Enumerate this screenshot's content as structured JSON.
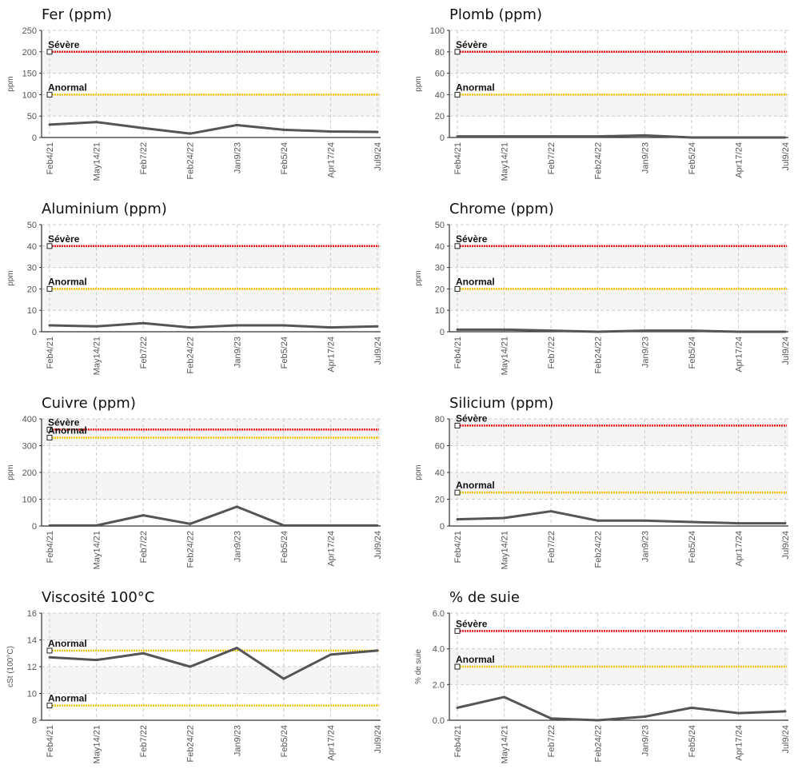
{
  "colors": {
    "severe": "#e8171a",
    "abnormal": "#f5c50e",
    "series": "#555555",
    "band": "#f5f5f5",
    "grid": "#cccccc"
  },
  "chart_data": [
    {
      "type": "line",
      "title": "Fer (ppm)",
      "ylabel": "ppm",
      "categories": [
        "Feb4/21",
        "May14/21",
        "Feb7/22",
        "Feb24/22",
        "Jan9/23",
        "Feb5/24",
        "Apr17/24",
        "Jul9/24"
      ],
      "ylim": [
        0,
        250
      ],
      "yticks": [
        "0",
        "50",
        "100",
        "150",
        "200",
        "250"
      ],
      "series": [
        {
          "values": [
            30,
            36,
            22,
            9,
            29,
            18,
            14,
            13
          ]
        }
      ],
      "thresholds": [
        {
          "label": "Sévère",
          "value": 200,
          "level": "severe"
        },
        {
          "label": "Anormal",
          "value": 100,
          "level": "abnormal"
        }
      ]
    },
    {
      "type": "line",
      "title": "Plomb (ppm)",
      "ylabel": "ppm",
      "categories": [
        "Feb4/21",
        "May14/21",
        "Feb7/22",
        "Feb24/22",
        "Jan9/23",
        "Feb5/24",
        "Apr17/24",
        "Jul9/24"
      ],
      "ylim": [
        0,
        100
      ],
      "yticks": [
        "0",
        "20",
        "40",
        "60",
        "80",
        "100"
      ],
      "series": [
        {
          "values": [
            1,
            1,
            1,
            1,
            2,
            0,
            0,
            0
          ]
        }
      ],
      "thresholds": [
        {
          "label": "Sévère",
          "value": 80,
          "level": "severe"
        },
        {
          "label": "Anormal",
          "value": 40,
          "level": "abnormal"
        }
      ]
    },
    {
      "type": "line",
      "title": "Aluminium (ppm)",
      "ylabel": "ppm",
      "categories": [
        "Feb4/21",
        "May14/21",
        "Feb7/22",
        "Feb24/22",
        "Jan9/23",
        "Feb5/24",
        "Apr17/24",
        "Jul9/24"
      ],
      "ylim": [
        0,
        50
      ],
      "yticks": [
        "0",
        "10",
        "20",
        "30",
        "40",
        "50"
      ],
      "series": [
        {
          "values": [
            3,
            2.5,
            4,
            2,
            3,
            3,
            2,
            2.5
          ]
        }
      ],
      "thresholds": [
        {
          "label": "Sévère",
          "value": 40,
          "level": "severe"
        },
        {
          "label": "Anormal",
          "value": 20,
          "level": "abnormal"
        }
      ]
    },
    {
      "type": "line",
      "title": "Chrome (ppm)",
      "ylabel": "ppm",
      "categories": [
        "Feb4/21",
        "May14/21",
        "Feb7/22",
        "Feb24/22",
        "Jan9/23",
        "Feb5/24",
        "Apr17/24",
        "Jul9/24"
      ],
      "ylim": [
        0,
        50
      ],
      "yticks": [
        "0",
        "10",
        "20",
        "30",
        "40",
        "50"
      ],
      "series": [
        {
          "values": [
            1,
            1,
            0.5,
            0,
            0.5,
            0.5,
            0,
            0
          ]
        }
      ],
      "thresholds": [
        {
          "label": "Sévère",
          "value": 40,
          "level": "severe"
        },
        {
          "label": "Anormal",
          "value": 20,
          "level": "abnormal"
        }
      ]
    },
    {
      "type": "line",
      "title": "Cuivre (ppm)",
      "ylabel": "ppm",
      "categories": [
        "Feb4/21",
        "May14/21",
        "Feb7/22",
        "Feb24/22",
        "Jan9/23",
        "Feb5/24",
        "Apr17/24",
        "Jul9/24"
      ],
      "ylim": [
        0,
        400
      ],
      "yticks": [
        "0",
        "100",
        "200",
        "300",
        "400"
      ],
      "series": [
        {
          "values": [
            2,
            2,
            40,
            8,
            72,
            2,
            2,
            2
          ]
        }
      ],
      "thresholds": [
        {
          "label": "Sévère",
          "value": 360,
          "level": "severe"
        },
        {
          "label": "Anormal",
          "value": 330,
          "level": "abnormal"
        }
      ]
    },
    {
      "type": "line",
      "title": "Silicium (ppm)",
      "ylabel": "ppm",
      "categories": [
        "Feb4/21",
        "May14/21",
        "Feb7/22",
        "Feb24/22",
        "Jan9/23",
        "Feb5/24",
        "Apr17/24",
        "Jul9/24"
      ],
      "ylim": [
        0,
        80
      ],
      "yticks": [
        "0",
        "20",
        "40",
        "60",
        "80"
      ],
      "series": [
        {
          "values": [
            5,
            6,
            11,
            4,
            4,
            3,
            2,
            2
          ]
        }
      ],
      "thresholds": [
        {
          "label": "Sévère",
          "value": 75,
          "level": "severe"
        },
        {
          "label": "Anormal",
          "value": 25,
          "level": "abnormal"
        }
      ]
    },
    {
      "type": "line",
      "title": "Viscosité 100°C",
      "ylabel": "cSt (100°C)",
      "categories": [
        "Feb4/21",
        "May14/21",
        "Feb7/22",
        "Feb24/22",
        "Jan9/23",
        "Feb5/24",
        "Apr17/24",
        "Jul9/24"
      ],
      "ylim": [
        8,
        16
      ],
      "yticks": [
        "8",
        "10",
        "12",
        "14",
        "16"
      ],
      "series": [
        {
          "values": [
            12.7,
            12.5,
            13.0,
            12.0,
            13.4,
            11.1,
            12.9,
            13.2
          ]
        }
      ],
      "thresholds": [
        {
          "label": "Anormal",
          "value": 13.2,
          "level": "abnormal"
        },
        {
          "label": "Anormal",
          "value": 9.1,
          "level": "abnormal"
        }
      ]
    },
    {
      "type": "line",
      "title": "% de suie",
      "ylabel": "% de suie",
      "categories": [
        "Feb4/21",
        "May14/21",
        "Feb7/22",
        "Feb24/22",
        "Jan9/23",
        "Feb5/24",
        "Apr17/24",
        "Jul9/24"
      ],
      "ylim": [
        0,
        6
      ],
      "yticks": [
        "0.0",
        "2.0",
        "4.0",
        "6.0"
      ],
      "series": [
        {
          "values": [
            0.7,
            1.3,
            0.1,
            0,
            0.2,
            0.7,
            0.4,
            0.5
          ]
        }
      ],
      "thresholds": [
        {
          "label": "Sévère",
          "value": 5.0,
          "level": "severe"
        },
        {
          "label": "Anormal",
          "value": 3.0,
          "level": "abnormal"
        }
      ]
    }
  ]
}
